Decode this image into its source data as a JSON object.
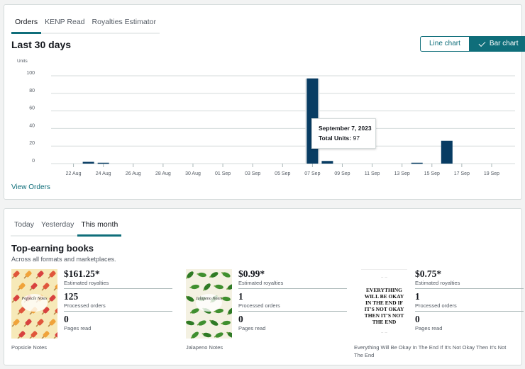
{
  "chart_card": {
    "tabs": [
      {
        "label": "Orders",
        "active": true
      },
      {
        "label": "KENP Read",
        "active": false
      },
      {
        "label": "Royalties Estimator",
        "active": false
      }
    ],
    "title": "Last 30 days",
    "toggle": {
      "line_label": "Line chart",
      "bar_label": "Bar chart",
      "selected": "Bar chart"
    },
    "view_orders_label": "View Orders",
    "tooltip": {
      "date": "September 7, 2023",
      "label": "Total Units:",
      "value": "97"
    }
  },
  "chart_data": {
    "type": "bar",
    "ylabel": "Units",
    "ylim": [
      0,
      100
    ],
    "yticks": [
      0,
      20,
      40,
      60,
      80,
      100
    ],
    "grid": true,
    "tick_labels": [
      "22 Aug",
      "24 Aug",
      "26 Aug",
      "28 Aug",
      "30 Aug",
      "01 Sep",
      "03 Sep",
      "05 Sep",
      "07 Sep",
      "09 Sep",
      "11 Sep",
      "13 Sep",
      "15 Sep",
      "17 Sep",
      "19 Sep"
    ],
    "categories": [
      "21 Aug",
      "22 Aug",
      "23 Aug",
      "24 Aug",
      "25 Aug",
      "26 Aug",
      "27 Aug",
      "28 Aug",
      "29 Aug",
      "30 Aug",
      "31 Aug",
      "01 Sep",
      "02 Sep",
      "03 Sep",
      "04 Sep",
      "05 Sep",
      "06 Sep",
      "07 Sep",
      "08 Sep",
      "09 Sep",
      "10 Sep",
      "11 Sep",
      "12 Sep",
      "13 Sep",
      "14 Sep",
      "15 Sep",
      "16 Sep",
      "17 Sep",
      "18 Sep",
      "19 Sep"
    ],
    "values": [
      0,
      0,
      2,
      1,
      0,
      0,
      0,
      0,
      0,
      0,
      0,
      0,
      0,
      0,
      0,
      0,
      0,
      97,
      3,
      0,
      0,
      0,
      0,
      0,
      1,
      0,
      26,
      0,
      0,
      0
    ],
    "highlight": "07 Sep",
    "bar_color": "#083c63"
  },
  "books_card": {
    "tabs": [
      {
        "label": "Today",
        "active": false
      },
      {
        "label": "Yesterday",
        "active": false
      },
      {
        "label": "This month",
        "active": true
      }
    ],
    "title": "Top-earning books",
    "subtitle": "Across all formats and marketplaces.",
    "books": [
      {
        "title": "Popsicle Notes",
        "cover_text": "Popsicle Notes",
        "royalties": "$161.25*",
        "royalties_label": "Estimated royalties",
        "orders": "125",
        "orders_label": "Processed orders",
        "pages": "0",
        "pages_label": "Pages read"
      },
      {
        "title": "Jalapeno Notes",
        "cover_text": "Jalapeno Notes",
        "royalties": "$0.99*",
        "royalties_label": "Estimated royalties",
        "orders": "1",
        "orders_label": "Processed orders",
        "pages": "0",
        "pages_label": "Pages read"
      },
      {
        "title": "Everything Will Be Okay In The End If It's Not Okay Then It's Not The End",
        "cover_text": "EVERYTHING WILL BE OKAY IN THE END IF IT'S NOT OKAY THEN IT'S NOT THE END",
        "royalties": "$0.75*",
        "royalties_label": "Estimated royalties",
        "orders": "1",
        "orders_label": "Processed orders",
        "pages": "0",
        "pages_label": "Pages read"
      }
    ]
  }
}
